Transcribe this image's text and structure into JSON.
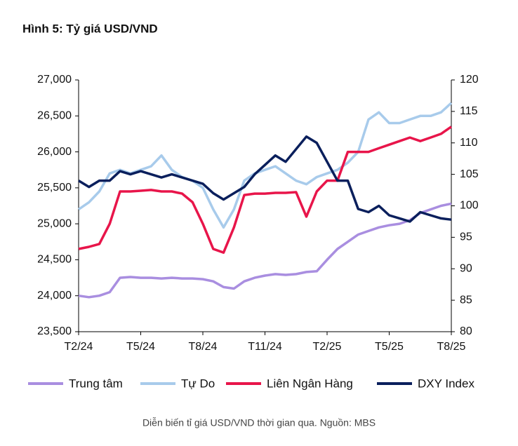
{
  "chart_data": {
    "type": "line",
    "title": "Hình 5: Tỷ giá USD/VND",
    "caption": "Diễn biến tỉ giá USD/VND thời gian qua. Nguồn: MBS",
    "categories": [
      "T2/24",
      null,
      null,
      null,
      null,
      null,
      "T5/24",
      null,
      null,
      null,
      null,
      null,
      "T8/24",
      null,
      null,
      null,
      null,
      null,
      "T11/24",
      null,
      null,
      null,
      null,
      null,
      "T2/25",
      null,
      null,
      null,
      null,
      null,
      "T5/25",
      null,
      null,
      null,
      null,
      null,
      "T8/25"
    ],
    "ylim": [
      23500,
      27000
    ],
    "yticks": [
      {
        "value": 23500,
        "label": "23,500"
      },
      {
        "value": 24000,
        "label": "24,000"
      },
      {
        "value": 24500,
        "label": "24,500"
      },
      {
        "value": 25000,
        "label": "25,000"
      },
      {
        "value": 25500,
        "label": "25,500"
      },
      {
        "value": 26000,
        "label": "26,000"
      },
      {
        "value": 26500,
        "label": "26,500"
      },
      {
        "value": 27000,
        "label": "27,000"
      }
    ],
    "y2lim": [
      80,
      120
    ],
    "y2ticks": [
      80,
      85,
      90,
      95,
      100,
      105,
      110,
      115,
      120
    ],
    "series": [
      {
        "name": "Trung tâm",
        "color": "#a98ee0",
        "values": [
          24000,
          23980,
          24000,
          24050,
          24250,
          24260,
          24250,
          24250,
          24240,
          24250,
          24240,
          24240,
          24230,
          24200,
          24120,
          24100,
          24200,
          24250,
          24280,
          24300,
          24290,
          24300,
          24330,
          24340,
          24500,
          24650,
          24750,
          24850,
          24900,
          24950,
          24980,
          25000,
          25050,
          25150,
          25200,
          25250,
          25280
        ]
      },
      {
        "name": "Tự Do",
        "color": "#a8cbeb",
        "values": [
          25200,
          25300,
          25450,
          25700,
          25750,
          25700,
          25750,
          25800,
          25950,
          25750,
          25650,
          25600,
          25500,
          25200,
          24950,
          25200,
          25600,
          25700,
          25750,
          25800,
          25700,
          25600,
          25550,
          25650,
          25700,
          25750,
          25850,
          26000,
          26450,
          26550,
          26400,
          26400,
          26450,
          26500,
          26500,
          26550,
          26680
        ]
      },
      {
        "name": "Liên Ngân Hàng",
        "color": "#e8154a",
        "values": [
          24650,
          24680,
          24720,
          25000,
          25450,
          25450,
          25460,
          25470,
          25450,
          25450,
          25420,
          25300,
          25000,
          24650,
          24600,
          24950,
          25400,
          25420,
          25420,
          25430,
          25430,
          25440,
          25100,
          25450,
          25600,
          25600,
          26000,
          26000,
          26000,
          26050,
          26100,
          26150,
          26200,
          26150,
          26200,
          26250,
          26350
        ]
      },
      {
        "name": "DXY Index",
        "color": "#0a1f5c",
        "axis": "y2",
        "values": [
          104,
          103,
          104,
          104,
          105.5,
          105,
          105.5,
          105,
          104.5,
          105,
          104.5,
          104,
          103.5,
          102,
          101,
          102,
          103,
          105,
          106.5,
          108,
          107,
          109,
          111,
          110,
          107,
          104,
          104,
          99.5,
          99,
          100,
          98.5,
          98,
          97.5,
          99,
          98.5,
          98,
          97.8
        ]
      }
    ]
  }
}
